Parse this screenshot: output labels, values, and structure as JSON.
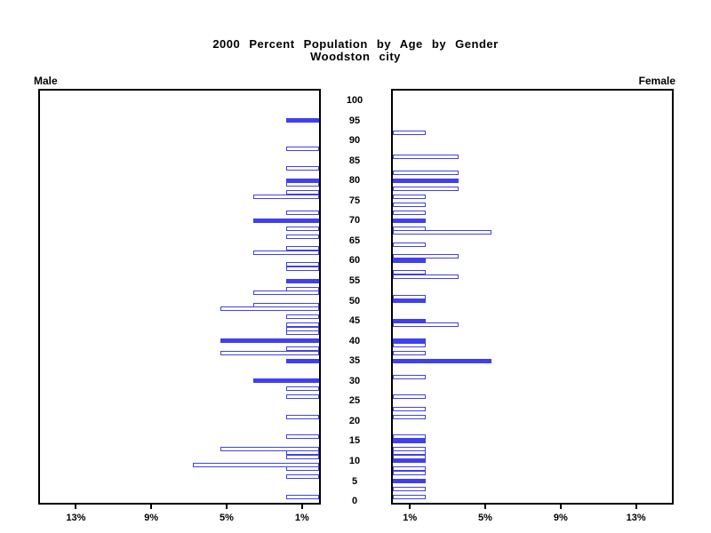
{
  "colors": {
    "bar_blue": "#4040ee",
    "axis_black": "#000000",
    "background": "#ffffff"
  },
  "chart_data": {
    "type": "bar",
    "subtype": "population-pyramid",
    "title": "2000 Percent Population by Age by Gender",
    "subtitle": "Woodston city",
    "left_series_label": "Male",
    "right_series_label": "Female",
    "x_axis": {
      "unit": "%",
      "min": 0,
      "max": 15,
      "tick_values": [
        1,
        5,
        9,
        13
      ],
      "tick_labels": [
        "1%",
        "5%",
        "9%",
        "13%"
      ]
    },
    "age_axis": {
      "min": 0,
      "max": 100,
      "tick_interval": 5,
      "tick_labels": [
        0,
        5,
        10,
        15,
        20,
        25,
        30,
        35,
        40,
        45,
        50,
        55,
        60,
        65,
        70,
        75,
        80,
        85,
        90,
        95,
        100
      ]
    },
    "legend": "filled bars mark ages that are multiples of 5; other ages are hollow outlined bars",
    "series": [
      {
        "name": "Male",
        "side": "left",
        "points": [
          {
            "age": 95,
            "pct": 1.75,
            "filled": true
          },
          {
            "age": 88,
            "pct": 1.75,
            "filled": false
          },
          {
            "age": 83,
            "pct": 1.75,
            "filled": false
          },
          {
            "age": 80,
            "pct": 1.75,
            "filled": true
          },
          {
            "age": 79,
            "pct": 1.75,
            "filled": false
          },
          {
            "age": 77,
            "pct": 1.75,
            "filled": false
          },
          {
            "age": 76,
            "pct": 3.5,
            "filled": false
          },
          {
            "age": 72,
            "pct": 1.75,
            "filled": false
          },
          {
            "age": 70,
            "pct": 3.5,
            "filled": true
          },
          {
            "age": 68,
            "pct": 1.75,
            "filled": false
          },
          {
            "age": 66,
            "pct": 1.75,
            "filled": false
          },
          {
            "age": 63,
            "pct": 1.75,
            "filled": false
          },
          {
            "age": 62,
            "pct": 3.5,
            "filled": false
          },
          {
            "age": 59,
            "pct": 1.75,
            "filled": false
          },
          {
            "age": 58,
            "pct": 1.75,
            "filled": false
          },
          {
            "age": 55,
            "pct": 1.75,
            "filled": true
          },
          {
            "age": 53,
            "pct": 1.75,
            "filled": false
          },
          {
            "age": 52,
            "pct": 3.5,
            "filled": false
          },
          {
            "age": 49,
            "pct": 3.5,
            "filled": false
          },
          {
            "age": 48,
            "pct": 5.25,
            "filled": false
          },
          {
            "age": 46,
            "pct": 1.75,
            "filled": false
          },
          {
            "age": 44,
            "pct": 1.75,
            "filled": false
          },
          {
            "age": 43,
            "pct": 1.75,
            "filled": false
          },
          {
            "age": 42,
            "pct": 1.75,
            "filled": false
          },
          {
            "age": 40,
            "pct": 5.25,
            "filled": true
          },
          {
            "age": 38,
            "pct": 1.75,
            "filled": false
          },
          {
            "age": 37,
            "pct": 5.25,
            "filled": false
          },
          {
            "age": 35,
            "pct": 1.75,
            "filled": true
          },
          {
            "age": 30,
            "pct": 3.5,
            "filled": true
          },
          {
            "age": 28,
            "pct": 1.75,
            "filled": false
          },
          {
            "age": 26,
            "pct": 1.75,
            "filled": false
          },
          {
            "age": 21,
            "pct": 1.75,
            "filled": false
          },
          {
            "age": 16,
            "pct": 1.75,
            "filled": false
          },
          {
            "age": 13,
            "pct": 5.25,
            "filled": false
          },
          {
            "age": 12,
            "pct": 1.75,
            "filled": false
          },
          {
            "age": 11,
            "pct": 1.75,
            "filled": false
          },
          {
            "age": 9,
            "pct": 6.7,
            "filled": false
          },
          {
            "age": 8,
            "pct": 1.75,
            "filled": false
          },
          {
            "age": 6,
            "pct": 1.75,
            "filled": false
          },
          {
            "age": 1,
            "pct": 1.75,
            "filled": false
          }
        ]
      },
      {
        "name": "Female",
        "side": "right",
        "points": [
          {
            "age": 92,
            "pct": 1.75,
            "filled": false
          },
          {
            "age": 86,
            "pct": 3.5,
            "filled": false
          },
          {
            "age": 82,
            "pct": 3.5,
            "filled": false
          },
          {
            "age": 80,
            "pct": 3.5,
            "filled": true
          },
          {
            "age": 78,
            "pct": 3.5,
            "filled": false
          },
          {
            "age": 76,
            "pct": 1.75,
            "filled": false
          },
          {
            "age": 74,
            "pct": 1.75,
            "filled": false
          },
          {
            "age": 72,
            "pct": 1.75,
            "filled": false
          },
          {
            "age": 70,
            "pct": 1.75,
            "filled": true
          },
          {
            "age": 68,
            "pct": 1.75,
            "filled": false
          },
          {
            "age": 67,
            "pct": 5.25,
            "filled": false
          },
          {
            "age": 64,
            "pct": 1.75,
            "filled": false
          },
          {
            "age": 61,
            "pct": 3.5,
            "filled": false
          },
          {
            "age": 60,
            "pct": 1.75,
            "filled": true
          },
          {
            "age": 57,
            "pct": 1.75,
            "filled": false
          },
          {
            "age": 56,
            "pct": 3.5,
            "filled": false
          },
          {
            "age": 51,
            "pct": 1.75,
            "filled": false
          },
          {
            "age": 50,
            "pct": 1.75,
            "filled": true
          },
          {
            "age": 45,
            "pct": 1.75,
            "filled": true
          },
          {
            "age": 44,
            "pct": 3.5,
            "filled": false
          },
          {
            "age": 40,
            "pct": 1.75,
            "filled": true
          },
          {
            "age": 39,
            "pct": 1.75,
            "filled": false
          },
          {
            "age": 37,
            "pct": 1.75,
            "filled": false
          },
          {
            "age": 35,
            "pct": 5.25,
            "filled": true
          },
          {
            "age": 31,
            "pct": 1.75,
            "filled": false
          },
          {
            "age": 26,
            "pct": 1.75,
            "filled": false
          },
          {
            "age": 23,
            "pct": 1.75,
            "filled": false
          },
          {
            "age": 21,
            "pct": 1.75,
            "filled": false
          },
          {
            "age": 16,
            "pct": 1.75,
            "filled": false
          },
          {
            "age": 15,
            "pct": 1.75,
            "filled": true
          },
          {
            "age": 13,
            "pct": 1.75,
            "filled": false
          },
          {
            "age": 12,
            "pct": 1.75,
            "filled": false
          },
          {
            "age": 11,
            "pct": 1.75,
            "filled": false
          },
          {
            "age": 10,
            "pct": 1.75,
            "filled": true
          },
          {
            "age": 8,
            "pct": 1.75,
            "filled": false
          },
          {
            "age": 7,
            "pct": 1.75,
            "filled": false
          },
          {
            "age": 5,
            "pct": 1.75,
            "filled": true
          },
          {
            "age": 3,
            "pct": 1.75,
            "filled": false
          },
          {
            "age": 1,
            "pct": 1.75,
            "filled": false
          }
        ]
      }
    ]
  }
}
